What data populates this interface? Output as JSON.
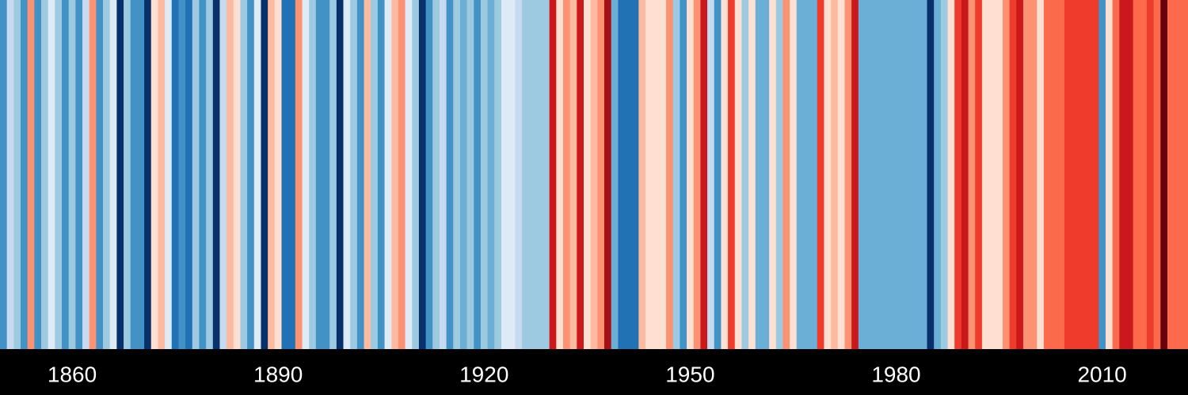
{
  "chart_data": {
    "type": "stripes",
    "x": [
      1850,
      1851,
      1852,
      1853,
      1854,
      1855,
      1856,
      1857,
      1858,
      1859,
      1860,
      1861,
      1862,
      1863,
      1864,
      1865,
      1866,
      1867,
      1868,
      1869,
      1870,
      1871,
      1872,
      1873,
      1874,
      1875,
      1876,
      1877,
      1878,
      1879,
      1880,
      1881,
      1882,
      1883,
      1884,
      1885,
      1886,
      1887,
      1888,
      1889,
      1890,
      1891,
      1892,
      1893,
      1894,
      1895,
      1896,
      1897,
      1898,
      1899,
      1900,
      1901,
      1902,
      1903,
      1904,
      1905,
      1906,
      1907,
      1908,
      1909,
      1910,
      1911,
      1912,
      1913,
      1914,
      1915,
      1916,
      1917,
      1918,
      1919,
      1920,
      1921,
      1922,
      1923,
      1924,
      1925,
      1926,
      1927,
      1928,
      1929,
      1930,
      1931,
      1932,
      1933,
      1934,
      1935,
      1936,
      1937,
      1938,
      1939,
      1940,
      1941,
      1942,
      1943,
      1944,
      1945,
      1946,
      1947,
      1948,
      1949,
      1950,
      1951,
      1952,
      1953,
      1954,
      1955,
      1956,
      1957,
      1958,
      1959,
      1960,
      1961,
      1962,
      1963,
      1964,
      1965,
      1966,
      1967,
      1968,
      1969,
      1970,
      1971,
      1972,
      1973,
      1974,
      1975,
      1976,
      1977,
      1978,
      1979,
      1980,
      1981,
      1982,
      1983,
      1984,
      1985,
      1986,
      1987,
      1988,
      1989,
      1990,
      1991,
      1992,
      1993,
      1994,
      1995,
      1996,
      1997,
      1998,
      1999,
      2000,
      2001,
      2002,
      2003,
      2004,
      2005,
      2006,
      2007,
      2008,
      2009,
      2010,
      2011,
      2012,
      2013,
      2014,
      2015,
      2016,
      2017,
      2018,
      2019,
      2020,
      2021,
      2022
    ],
    "values": [
      -0.45,
      -0.15,
      -0.25,
      -0.45,
      0.25,
      -0.45,
      -0.25,
      -0.05,
      -0.25,
      -0.45,
      -0.25,
      -0.45,
      -0.15,
      0.25,
      -0.45,
      -0.25,
      -0.05,
      -0.75,
      -0.25,
      -0.45,
      -0.45,
      -0.75,
      0.05,
      0.15,
      -0.05,
      -0.55,
      -0.45,
      -0.55,
      -0.25,
      -0.45,
      -0.25,
      -0.75,
      -0.15,
      0.15,
      0.05,
      -0.25,
      -0.45,
      -0.05,
      -0.75,
      0.15,
      0.05,
      -0.55,
      -0.55,
      0.25,
      -0.05,
      -0.25,
      -0.45,
      -0.45,
      -0.25,
      -0.75,
      -0.05,
      -0.25,
      -0.45,
      0.15,
      -0.25,
      -0.45,
      -0.05,
      0.15,
      0.25,
      -0.05,
      -0.25,
      -0.75,
      -0.45,
      -0.25,
      -0.15,
      -0.45,
      -0.25,
      -0.35,
      -0.25,
      -0.45,
      -0.25,
      -0.35,
      -0.25,
      -0.05,
      -0.05,
      -0.15,
      -0.25,
      -0.25,
      -0.25,
      -0.25,
      0.55,
      0.05,
      0.25,
      0.15,
      0.55,
      0.05,
      0.15,
      0.25,
      0.65,
      -0.35,
      -0.55,
      -0.55,
      -0.55,
      0.15,
      0.05,
      0.05,
      0.05,
      0.25,
      -0.25,
      -0.45,
      0.05,
      0.25,
      0.55,
      -0.15,
      -0.45,
      0.05,
      0.45,
      0.05,
      -0.25,
      0.05,
      -0.35,
      -0.35,
      0.05,
      -0.25,
      0.25,
      0.05,
      -0.35,
      -0.35,
      -0.35,
      0.45,
      0.05,
      0.15,
      0.05,
      0.25,
      0.55,
      -0.35,
      -0.35,
      -0.35,
      -0.35,
      -0.35,
      -0.35,
      -0.35,
      -0.35,
      -0.35,
      -0.35,
      -0.75,
      -0.35,
      -0.25,
      0.05,
      0.45,
      0.55,
      0.25,
      0.45,
      0.05,
      0.05,
      0.05,
      0.25,
      0.45,
      0.55,
      0.25,
      0.25,
      0.05,
      0.35,
      0.35,
      0.35,
      0.45,
      0.45,
      0.45,
      0.45,
      0.45,
      -0.45,
      0.05,
      0.35,
      0.55,
      0.55,
      0.35,
      0.35,
      0.45,
      0.35,
      0.75,
      0.35,
      0.35,
      0.35
    ],
    "xlim": [
      1850,
      2023
    ],
    "xticks": [
      1860,
      1890,
      1920,
      1950,
      1980,
      2010
    ],
    "clim": [
      -0.8,
      0.8
    ],
    "colors": [
      "#08306b",
      "#08519c",
      "#2171b5",
      "#4292c6",
      "#6baed6",
      "#9ecae1",
      "#c6dbef",
      "#deebf7",
      "#fee0d2",
      "#fcbba1",
      "#fc9272",
      "#fb6a4a",
      "#ef3b2c",
      "#cb181d",
      "#a50f15",
      "#67000d"
    ]
  }
}
